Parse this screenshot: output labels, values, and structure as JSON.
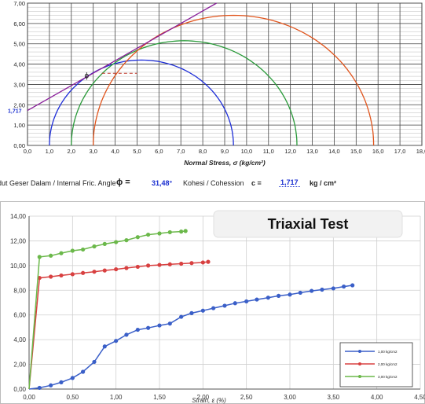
{
  "mohr": {
    "chart_data": {
      "type": "scatter",
      "title": "",
      "xlabel": "Normal Stress, σ (kg/cm²)",
      "ylabel": "",
      "xlim": [
        0,
        18
      ],
      "ylim": [
        0,
        7
      ],
      "grid": true,
      "x_ticks": [
        "0,0",
        "1,0",
        "2,0",
        "3,0",
        "4,0",
        "5,0",
        "6,0",
        "7,0",
        "8,0",
        "9,0",
        "10,0",
        "11,0",
        "12,0",
        "13,0",
        "14,0",
        "15,0",
        "16,0",
        "17,0",
        "18,0"
      ],
      "y_ticks": [
        "0,00",
        "1,00",
        "2,00",
        "3,00",
        "4,00",
        "5,00",
        "6,00",
        "7,00"
      ],
      "circles": [
        {
          "sigma3": 1.0,
          "sigma1": 9.4,
          "color": "#1f2fd8"
        },
        {
          "sigma3": 2.0,
          "sigma1": 12.3,
          "color": "#2a9a3a"
        },
        {
          "sigma3": 3.0,
          "sigma1": 15.8,
          "color": "#e0541c"
        }
      ],
      "envelope": {
        "c": 1.717,
        "phi_deg": 31.48,
        "x_end": 12,
        "color": "#8a1f9a"
      },
      "intercept_label": "1,717",
      "phi_marker": {
        "x": 2.6,
        "y": 3.3,
        "label": "ϕ"
      },
      "dashed_segment": {
        "x_start": 3.4,
        "x_end": 5.0,
        "y": 3.55
      }
    }
  },
  "results": {
    "angle_label": "Sudut Geser Dalam / Internal Fric. Angle",
    "phi_symbol": "ϕ =",
    "phi_value": "31,48°",
    "cohesion_label": "Kohesi / Cohession",
    "c_symbol": "c =",
    "c_value": "1,717",
    "c_unit": "kg / cm²"
  },
  "triaxial": {
    "title": "Triaxial Test",
    "chart_data": {
      "type": "line",
      "title": "Triaxial Test",
      "xlabel": "Strain, ε (%)",
      "ylabel": "",
      "xlim": [
        0,
        4.5
      ],
      "ylim": [
        0,
        14
      ],
      "grid": true,
      "x_ticks": [
        "0,00",
        "0,50",
        "1,00",
        "1,50",
        "2,00",
        "2,50",
        "3,00",
        "3,50",
        "4,00",
        "4,50"
      ],
      "y_ticks": [
        "0,00",
        "2,00",
        "4,00",
        "6,00",
        "8,00",
        "10,00",
        "12,00",
        "14,00"
      ],
      "legend_position": "bottom-right",
      "series": [
        {
          "name": "1,00 kg/cm2",
          "color": "#3a5fc8",
          "x": [
            0,
            0.12,
            0.25,
            0.37,
            0.5,
            0.62,
            0.75,
            0.87,
            1.0,
            1.12,
            1.25,
            1.37,
            1.5,
            1.62,
            1.75,
            1.87,
            2.0,
            2.12,
            2.25,
            2.37,
            2.5,
            2.62,
            2.75,
            2.87,
            3.0,
            3.12,
            3.25,
            3.37,
            3.5,
            3.62,
            3.72
          ],
          "y": [
            0,
            0.1,
            0.3,
            0.55,
            0.9,
            1.4,
            2.2,
            3.45,
            3.9,
            4.4,
            4.8,
            4.95,
            5.15,
            5.3,
            5.85,
            6.15,
            6.35,
            6.55,
            6.75,
            6.95,
            7.1,
            7.25,
            7.4,
            7.55,
            7.65,
            7.8,
            7.95,
            8.05,
            8.15,
            8.3,
            8.4
          ]
        },
        {
          "name": "2,00 kg/cm2",
          "color": "#d84040",
          "x": [
            0,
            0.12,
            0.25,
            0.37,
            0.5,
            0.62,
            0.75,
            0.87,
            1.0,
            1.12,
            1.25,
            1.37,
            1.5,
            1.62,
            1.75,
            1.87,
            2.0,
            2.06
          ],
          "y": [
            0,
            9.0,
            9.1,
            9.2,
            9.3,
            9.4,
            9.5,
            9.6,
            9.7,
            9.8,
            9.9,
            10.0,
            10.05,
            10.1,
            10.15,
            10.2,
            10.25,
            10.3
          ]
        },
        {
          "name": "3,00 kg/cm2",
          "color": "#6bb84a",
          "x": [
            0,
            0.12,
            0.25,
            0.37,
            0.5,
            0.62,
            0.75,
            0.87,
            1.0,
            1.12,
            1.25,
            1.37,
            1.5,
            1.62,
            1.75,
            1.8
          ],
          "y": [
            0,
            10.7,
            10.8,
            11.0,
            11.2,
            11.3,
            11.55,
            11.75,
            11.9,
            12.05,
            12.3,
            12.5,
            12.6,
            12.7,
            12.75,
            12.8
          ]
        }
      ]
    }
  }
}
